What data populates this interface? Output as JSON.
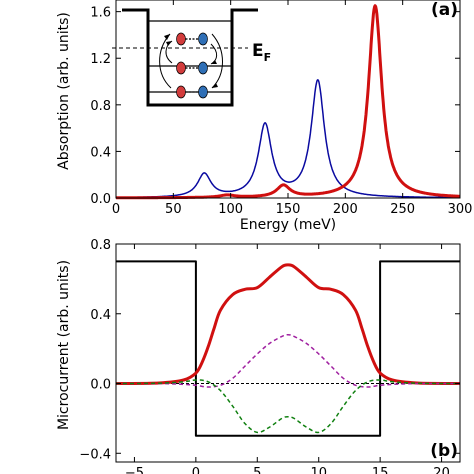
{
  "chart_data": [
    {
      "type": "line",
      "panel_label": "(a)",
      "xlabel": "Energy (meV)",
      "ylabel": "Absorption (arb. units)",
      "xlim": [
        0,
        300
      ],
      "ylim": [
        0,
        1.7
      ],
      "x_ticks": [
        0,
        50,
        100,
        150,
        200,
        250,
        300
      ],
      "y_ticks": [
        0.0,
        0.4,
        0.8,
        1.2,
        1.6
      ],
      "x_tick_labels": [
        "0",
        "50",
        "100",
        "150",
        "200",
        "250",
        "300"
      ],
      "y_tick_labels": [
        "0.0",
        "0.4",
        "0.8",
        "1.2",
        "1.6"
      ],
      "inset_label": "E",
      "inset_label_sub": "F",
      "series": [
        {
          "color": "#0a0aa0",
          "width": 1.5,
          "peaks": [
            {
              "center": 77,
              "height": 0.2,
              "width": 7
            },
            {
              "center": 130,
              "height": 0.62,
              "width": 7
            },
            {
              "center": 176,
              "height": 1.0,
              "width": 7
            }
          ]
        },
        {
          "color": "#d01010",
          "width": 3,
          "peaks": [
            {
              "center": 97,
              "height": 0.02,
              "width": 8
            },
            {
              "center": 146,
              "height": 0.1,
              "width": 7
            },
            {
              "center": 226,
              "height": 1.65,
              "width": 7
            }
          ]
        }
      ]
    },
    {
      "type": "line",
      "panel_label": "(b)",
      "xlabel": "",
      "ylabel": "Microcurrent (arb. units)",
      "xlim": [
        -6.5,
        21.5
      ],
      "ylim": [
        -0.45,
        0.8
      ],
      "x_ticks": [
        -5,
        0,
        5,
        10,
        15,
        20
      ],
      "y_ticks": [
        -0.4,
        0.0,
        0.4,
        0.8
      ],
      "x_tick_labels": [
        "−5",
        "0",
        "5",
        "10",
        "15",
        "20"
      ],
      "y_tick_labels": [
        "−0.4",
        "0.0",
        "0.4",
        "0.8"
      ],
      "series": [
        {
          "color": "#000000",
          "width": 2,
          "style": "solid",
          "x": [
            -6.5,
            0,
            0,
            15,
            15,
            21.5
          ],
          "y": [
            0.7,
            0.7,
            -0.3,
            -0.3,
            0.7,
            0.7
          ]
        },
        {
          "color": "#d01010",
          "width": 3,
          "style": "solid",
          "x": [
            -6.5,
            -3,
            -1,
            0,
            0.5,
            1,
            1.5,
            2,
            3,
            4,
            5,
            6,
            7,
            7.5,
            8,
            9,
            10,
            11,
            12,
            13,
            13.5,
            14,
            14.5,
            15,
            16,
            18,
            21.5
          ],
          "y": [
            0,
            0.003,
            0.02,
            0.06,
            0.12,
            0.21,
            0.32,
            0.42,
            0.51,
            0.54,
            0.55,
            0.61,
            0.67,
            0.68,
            0.67,
            0.61,
            0.55,
            0.54,
            0.51,
            0.42,
            0.32,
            0.21,
            0.12,
            0.06,
            0.02,
            0.003,
            0
          ]
        },
        {
          "color": "#a020a0",
          "width": 1.5,
          "style": "dashed",
          "x": [
            -6.5,
            -3,
            -1,
            0,
            1,
            2,
            3,
            4,
            5,
            6,
            7,
            7.5,
            8,
            9,
            10,
            11,
            12,
            13,
            14,
            15,
            16,
            18,
            21.5
          ],
          "y": [
            0,
            0,
            -0.005,
            -0.01,
            -0.02,
            -0.01,
            0.03,
            0.1,
            0.17,
            0.23,
            0.27,
            0.28,
            0.27,
            0.23,
            0.17,
            0.1,
            0.03,
            -0.01,
            -0.02,
            -0.01,
            -0.005,
            0,
            0
          ]
        },
        {
          "color": "#108010",
          "width": 1.5,
          "style": "dashed",
          "x": [
            -6.5,
            -3,
            -1,
            0,
            1,
            2,
            3,
            4,
            5,
            6,
            7,
            7.5,
            8,
            9,
            10,
            11,
            12,
            13,
            14,
            15,
            16,
            18,
            21.5
          ],
          "y": [
            0,
            0.002,
            0.01,
            0.02,
            0.01,
            -0.04,
            -0.13,
            -0.23,
            -0.28,
            -0.25,
            -0.2,
            -0.19,
            -0.2,
            -0.25,
            -0.28,
            -0.23,
            -0.13,
            -0.04,
            0.01,
            0.02,
            0.01,
            0.002,
            0
          ]
        }
      ]
    }
  ]
}
